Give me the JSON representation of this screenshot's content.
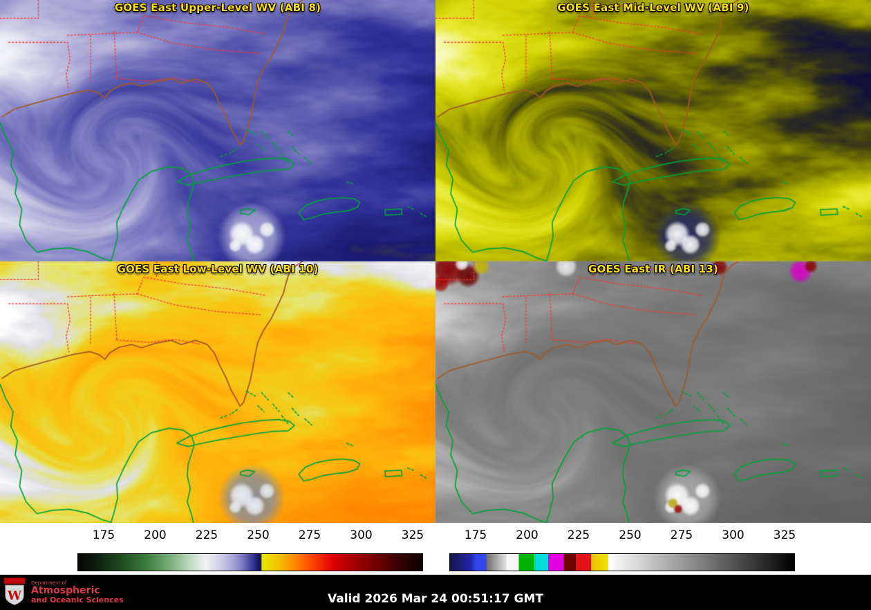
{
  "panels": [
    {
      "title": "GOES East Upper-Level WV (ABI 8)"
    },
    {
      "title": "GOES East Mid-Level WV (ABI 9)"
    },
    {
      "title": "GOES East Low-Level WV (ABI 10)"
    },
    {
      "title": "GOES East IR (ABI 13)"
    }
  ],
  "colorbars": [
    {
      "name": "water-vapor-scale",
      "ticks": [
        "175",
        "200",
        "225",
        "250",
        "275",
        "300",
        "325"
      ],
      "stops": [
        {
          "p": 0,
          "c": "#060606"
        },
        {
          "p": 5,
          "c": "#0d1c0d"
        },
        {
          "p": 12,
          "c": "#1d481d"
        },
        {
          "p": 20,
          "c": "#3c7e3e"
        },
        {
          "p": 27,
          "c": "#7cb07e"
        },
        {
          "p": 33,
          "c": "#c6dcc6"
        },
        {
          "p": 37,
          "c": "#f2f2f2"
        },
        {
          "p": 41,
          "c": "#d2d2ea"
        },
        {
          "p": 45,
          "c": "#a6a6d8"
        },
        {
          "p": 48,
          "c": "#7474c0"
        },
        {
          "p": 50,
          "c": "#4646a0"
        },
        {
          "p": 52,
          "c": "#1e1e72"
        },
        {
          "p": 53,
          "c": "#10104e"
        },
        {
          "p": 53.5,
          "c": "#e8e800"
        },
        {
          "p": 58,
          "c": "#f2c400"
        },
        {
          "p": 63,
          "c": "#ff8800"
        },
        {
          "p": 68,
          "c": "#ff4400"
        },
        {
          "p": 74,
          "c": "#dc0000"
        },
        {
          "p": 80,
          "c": "#a40000"
        },
        {
          "p": 87,
          "c": "#6e0000"
        },
        {
          "p": 93,
          "c": "#380000"
        },
        {
          "p": 100,
          "c": "#0c0000"
        }
      ]
    },
    {
      "name": "infrared-scale",
      "ticks": [
        "175",
        "200",
        "225",
        "250",
        "275",
        "300",
        "325"
      ],
      "stops": [
        {
          "p": 0,
          "c": "#14144a"
        },
        {
          "p": 6,
          "c": "#2424a8"
        },
        {
          "p": 7.5,
          "c": "#3346e8"
        },
        {
          "p": 10.5,
          "c": "#3346e8"
        },
        {
          "p": 10.5,
          "c": "#6a6a6a"
        },
        {
          "p": 16.5,
          "c": "#e6e6e6"
        },
        {
          "p": 16.5,
          "c": "#f8f8f8"
        },
        {
          "p": 20,
          "c": "#f8f8f8"
        },
        {
          "p": 20,
          "c": "#00b400"
        },
        {
          "p": 24.5,
          "c": "#00b400"
        },
        {
          "p": 24.5,
          "c": "#00dcdc"
        },
        {
          "p": 28.5,
          "c": "#00dcdc"
        },
        {
          "p": 28.5,
          "c": "#e000e0"
        },
        {
          "p": 33,
          "c": "#e000e0"
        },
        {
          "p": 33,
          "c": "#6e0000"
        },
        {
          "p": 36.5,
          "c": "#6e0000"
        },
        {
          "p": 36.5,
          "c": "#e01414"
        },
        {
          "p": 41,
          "c": "#e01414"
        },
        {
          "p": 41,
          "c": "#e8c400"
        },
        {
          "p": 46,
          "c": "#f2e200"
        },
        {
          "p": 46,
          "c": "#ffffff"
        },
        {
          "p": 100,
          "c": "#000000"
        }
      ]
    }
  ],
  "footer": {
    "valid": "Valid 2026 Mar 24 00:51:17 GMT",
    "logo": {
      "dept": "Department of",
      "line1": "Atmospheric",
      "line2": "and Oceanic Sciences"
    }
  },
  "colors": {
    "panel_title": "#ffdf00",
    "coast_us": "#a05a28",
    "coast_islands": "#00a23a",
    "state_borders": "#ff3232",
    "valid_text": "#ffffff",
    "logo_red": "#e03848",
    "colorbar_bg": "#ffffff",
    "footer_bg": "#000000"
  }
}
